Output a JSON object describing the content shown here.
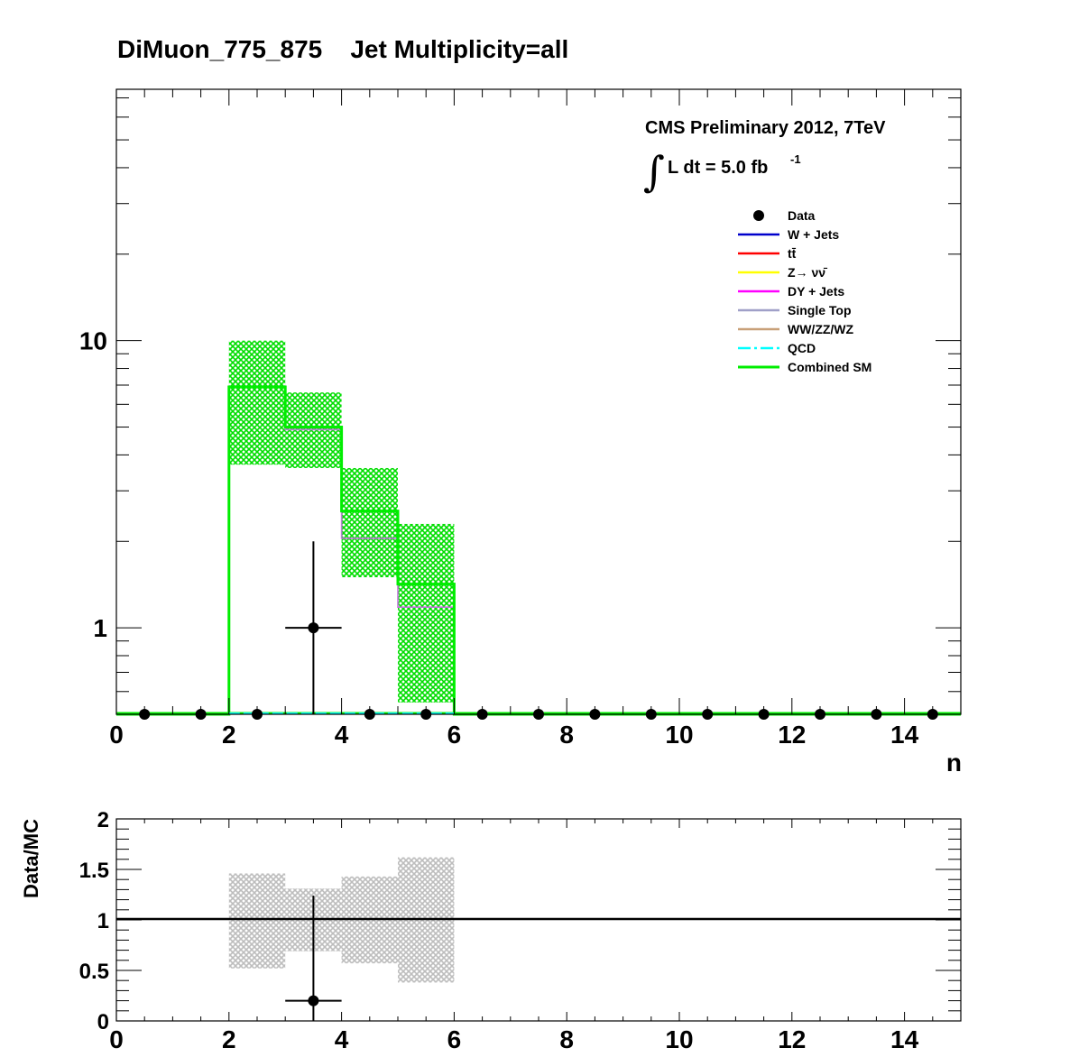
{
  "title": "DiMuon_775_875    Jet Multiplicity=all",
  "cms_label": "CMS Preliminary 2012, 7TeV",
  "lumi_prefix": "L dt = 5.0 fb",
  "lumi_exponent": "-1",
  "integral_symbol": "∫",
  "colors": {
    "data": "#000000",
    "wjets": "#0000cc",
    "ttbar": "#ff0000",
    "znunu": "#ffff00",
    "dyjets": "#ff00ff",
    "singletop": "#a0a0c8",
    "diboson": "#c8a078",
    "qcd": "#00ffff",
    "combined": "#00ee00",
    "ratio_band": "#bdbdbd"
  },
  "chart_data": [
    {
      "type": "line",
      "panel": "main",
      "title": "DiMuon_775_875    Jet Multiplicity=all",
      "xlabel": "n",
      "ylabel": "",
      "xlim": [
        0,
        15
      ],
      "ylim": [
        0.5,
        75
      ],
      "yscale": "log",
      "x_ticks": [
        "0",
        "2",
        "4",
        "6",
        "8",
        "10",
        "12",
        "14"
      ],
      "y_ticks": [
        "1",
        "10"
      ],
      "legend_position": "top-right",
      "legend": [
        "Data",
        "W + Jets",
        "tt̄",
        "Z→ νν̄",
        "DY + Jets",
        "Single Top",
        "WW/ZZ/WZ",
        "QCD",
        "Combined SM"
      ],
      "bin_edges": [
        0,
        1,
        2,
        3,
        4,
        5,
        6,
        7,
        8,
        9,
        10,
        11,
        12,
        13,
        14,
        15
      ],
      "series": [
        {
          "name": "Data",
          "x": [
            0.5,
            1.5,
            2.5,
            3.5,
            4.5,
            5.5,
            6.5,
            7.5,
            8.5,
            9.5,
            10.5,
            11.5,
            12.5,
            13.5,
            14.5
          ],
          "y": [
            0,
            0,
            0,
            1,
            0,
            0,
            0,
            0,
            0,
            0,
            0,
            0,
            0,
            0,
            0
          ],
          "y_err": [
            0,
            0,
            0,
            1.0,
            0,
            0,
            0,
            0,
            0,
            0,
            0,
            0,
            0,
            0,
            0
          ]
        },
        {
          "name": "DY + Jets",
          "values": [
            0,
            0,
            6.9,
            4.9,
            2.05,
            1.18,
            0,
            0,
            0,
            0,
            0,
            0,
            0,
            0,
            0
          ]
        },
        {
          "name": "Combined SM",
          "values": [
            0,
            0,
            6.9,
            5.0,
            2.55,
            1.42,
            0,
            0,
            0,
            0,
            0,
            0,
            0,
            0,
            0
          ],
          "band_low": [
            0,
            0,
            3.7,
            3.6,
            1.5,
            0.55,
            0,
            0,
            0,
            0,
            0,
            0,
            0,
            0,
            0
          ],
          "band_high": [
            0,
            0,
            10.0,
            6.6,
            3.6,
            2.3,
            0,
            0,
            0,
            0,
            0,
            0,
            0,
            0,
            0
          ]
        }
      ]
    },
    {
      "type": "scatter",
      "panel": "ratio",
      "xlabel": "",
      "ylabel": "Data/MC",
      "xlim": [
        0,
        15
      ],
      "ylim": [
        0,
        2
      ],
      "x_ticks": [
        "0",
        "2",
        "4",
        "6",
        "8",
        "10",
        "12",
        "14"
      ],
      "y_ticks": [
        "0",
        "0.5",
        "1",
        "1.5",
        "2"
      ],
      "reference_line": 1,
      "series": [
        {
          "name": "Data/MC",
          "x": [
            3.5
          ],
          "y": [
            0.2
          ],
          "y_err_low": [
            0.2
          ],
          "y_err_high": [
            1.04
          ],
          "x_err": [
            0.5
          ]
        }
      ],
      "uncertainty_band": {
        "bins": [
          [
            2,
            3
          ],
          [
            3,
            4
          ],
          [
            4,
            5
          ],
          [
            5,
            6
          ]
        ],
        "low": [
          0.52,
          0.69,
          0.57,
          0.38
        ],
        "high": [
          1.46,
          1.31,
          1.43,
          1.62
        ]
      }
    }
  ]
}
